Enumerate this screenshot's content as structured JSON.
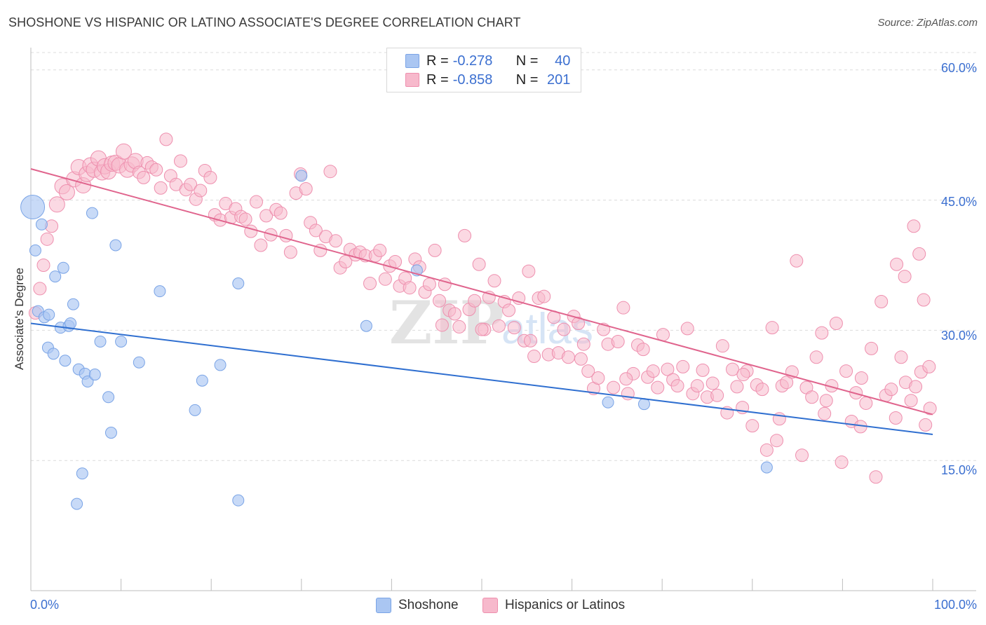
{
  "title": "SHOSHONE VS HISPANIC OR LATINO ASSOCIATE'S DEGREE CORRELATION CHART",
  "source": "Source: ZipAtlas.com",
  "legend": {
    "rows": [
      {
        "r_label": "R =",
        "r_value": "-0.278",
        "n_label": "N =",
        "n_value": "40"
      },
      {
        "r_label": "R =",
        "r_value": "-0.858",
        "n_label": "N =",
        "n_value": "201"
      }
    ],
    "bottom": [
      "Shoshone",
      "Hispanics or Latinos"
    ]
  },
  "colors": {
    "shoshone_fill": "#aac6f2",
    "shoshone_stroke": "#7aa4e6",
    "shoshone_line": "#2f6fd0",
    "hispanic_fill": "#f7b9cc",
    "hispanic_stroke": "#ee8fae",
    "hispanic_line": "#e0648d",
    "axis_text": "#3b6fd0"
  },
  "chart_data": {
    "type": "scatter",
    "title": "SHOSHONE VS HISPANIC OR LATINO ASSOCIATE'S DEGREE CORRELATION CHART",
    "xlabel": "",
    "ylabel": "Associate's Degree",
    "xlim": [
      0,
      100
    ],
    "ylim": [
      0,
      62
    ],
    "x_tick_labels": [
      "0.0%",
      "100.0%"
    ],
    "y_ticks": [
      15,
      30,
      45,
      60
    ],
    "y_tick_labels": [
      "15.0%",
      "30.0%",
      "45.0%",
      "60.0%"
    ],
    "grid": true,
    "watermark": "ZIPatlas",
    "series": [
      {
        "name": "Shoshone",
        "r": -0.278,
        "n": 40,
        "trend": [
          [
            0,
            30.8
          ],
          [
            100,
            18.0
          ]
        ],
        "points": [
          [
            0.2,
            44.2
          ],
          [
            0.5,
            39.2
          ],
          [
            0.8,
            32.2
          ],
          [
            1.2,
            42.2
          ],
          [
            1.5,
            31.5
          ],
          [
            2.0,
            31.8
          ],
          [
            1.9,
            28.0
          ],
          [
            2.5,
            27.3
          ],
          [
            2.7,
            36.2
          ],
          [
            3.3,
            30.3
          ],
          [
            3.6,
            37.2
          ],
          [
            3.8,
            26.5
          ],
          [
            4.2,
            30.5
          ],
          [
            4.4,
            30.8
          ],
          [
            4.7,
            33.0
          ],
          [
            5.1,
            10.0
          ],
          [
            5.3,
            25.5
          ],
          [
            5.7,
            13.5
          ],
          [
            6.0,
            25.0
          ],
          [
            6.3,
            24.1
          ],
          [
            7.1,
            24.9
          ],
          [
            6.8,
            43.5
          ],
          [
            7.7,
            28.7
          ],
          [
            8.6,
            22.3
          ],
          [
            8.9,
            18.2
          ],
          [
            9.4,
            39.8
          ],
          [
            10.0,
            28.7
          ],
          [
            12.0,
            26.3
          ],
          [
            14.3,
            34.5
          ],
          [
            18.2,
            20.8
          ],
          [
            19.0,
            24.2
          ],
          [
            21.0,
            26.0
          ],
          [
            23.0,
            10.4
          ],
          [
            23.0,
            35.4
          ],
          [
            30.0,
            47.8
          ],
          [
            37.2,
            30.5
          ],
          [
            42.8,
            36.9
          ],
          [
            64.0,
            21.7
          ],
          [
            68.0,
            21.5
          ],
          [
            81.6,
            14.2
          ]
        ]
      },
      {
        "name": "Hispanics or Latinos",
        "r": -0.858,
        "n": 201,
        "trend": [
          [
            0,
            48.6
          ],
          [
            100,
            20.3
          ]
        ],
        "points": [
          [
            0.5,
            32.0
          ],
          [
            1.0,
            34.8
          ],
          [
            1.4,
            37.5
          ],
          [
            1.8,
            40.5
          ],
          [
            2.3,
            42.0
          ],
          [
            2.9,
            44.5
          ],
          [
            3.5,
            46.6
          ],
          [
            4.0,
            45.9
          ],
          [
            4.8,
            47.4
          ],
          [
            5.3,
            48.8
          ],
          [
            5.8,
            46.7
          ],
          [
            6.2,
            48.0
          ],
          [
            6.6,
            49.0
          ],
          [
            7.0,
            48.5
          ],
          [
            7.5,
            49.8
          ],
          [
            7.9,
            48.2
          ],
          [
            8.2,
            48.9
          ],
          [
            8.6,
            48.3
          ],
          [
            9.0,
            49.2
          ],
          [
            9.4,
            49.3
          ],
          [
            9.8,
            49.0
          ],
          [
            10.3,
            50.6
          ],
          [
            10.7,
            48.5
          ],
          [
            11.2,
            49.1
          ],
          [
            11.6,
            49.5
          ],
          [
            12.0,
            48.2
          ],
          [
            12.5,
            47.6
          ],
          [
            12.9,
            49.3
          ],
          [
            13.4,
            48.8
          ],
          [
            13.9,
            48.5
          ],
          [
            14.4,
            46.4
          ],
          [
            15.0,
            52.0
          ],
          [
            15.5,
            47.8
          ],
          [
            16.1,
            46.8
          ],
          [
            16.6,
            49.5
          ],
          [
            17.2,
            46.2
          ],
          [
            17.7,
            46.8
          ],
          [
            18.3,
            45.1
          ],
          [
            18.8,
            46.1
          ],
          [
            19.3,
            48.4
          ],
          [
            19.9,
            47.6
          ],
          [
            20.4,
            43.3
          ],
          [
            21.0,
            42.7
          ],
          [
            21.6,
            44.6
          ],
          [
            22.2,
            43.0
          ],
          [
            22.7,
            44.0
          ],
          [
            23.3,
            43.1
          ],
          [
            23.8,
            42.8
          ],
          [
            24.4,
            41.4
          ],
          [
            25.0,
            44.8
          ],
          [
            25.5,
            39.8
          ],
          [
            26.1,
            43.2
          ],
          [
            26.6,
            41.0
          ],
          [
            27.2,
            43.9
          ],
          [
            27.7,
            43.5
          ],
          [
            28.3,
            40.9
          ],
          [
            28.8,
            39.0
          ],
          [
            29.4,
            45.8
          ],
          [
            29.9,
            48.0
          ],
          [
            30.5,
            46.3
          ],
          [
            31.0,
            42.4
          ],
          [
            31.6,
            41.5
          ],
          [
            32.1,
            39.2
          ],
          [
            32.7,
            40.8
          ],
          [
            33.2,
            48.3
          ],
          [
            33.8,
            40.3
          ],
          [
            34.3,
            37.2
          ],
          [
            34.9,
            37.9
          ],
          [
            35.4,
            39.3
          ],
          [
            36.0,
            38.7
          ],
          [
            36.5,
            39.0
          ],
          [
            37.1,
            38.6
          ],
          [
            37.6,
            35.4
          ],
          [
            38.2,
            38.6
          ],
          [
            38.7,
            39.2
          ],
          [
            39.3,
            35.9
          ],
          [
            39.8,
            37.4
          ],
          [
            40.4,
            37.9
          ],
          [
            40.9,
            35.1
          ],
          [
            41.5,
            36.0
          ],
          [
            42.0,
            34.9
          ],
          [
            42.6,
            38.2
          ],
          [
            43.1,
            37.3
          ],
          [
            43.7,
            34.4
          ],
          [
            44.2,
            35.3
          ],
          [
            44.8,
            39.2
          ],
          [
            45.3,
            33.4
          ],
          [
            45.9,
            35.3
          ],
          [
            46.4,
            32.3
          ],
          [
            47.0,
            31.9
          ],
          [
            47.5,
            30.4
          ],
          [
            48.1,
            40.9
          ],
          [
            48.6,
            32.4
          ],
          [
            49.2,
            33.4
          ],
          [
            49.7,
            37.6
          ],
          [
            50.3,
            30.1
          ],
          [
            50.8,
            33.8
          ],
          [
            51.4,
            35.7
          ],
          [
            51.9,
            30.5
          ],
          [
            52.5,
            33.3
          ],
          [
            53.0,
            32.3
          ],
          [
            53.6,
            30.3
          ],
          [
            54.1,
            33.7
          ],
          [
            54.7,
            28.8
          ],
          [
            55.2,
            36.8
          ],
          [
            55.8,
            27.0
          ],
          [
            56.3,
            33.7
          ],
          [
            56.9,
            33.9
          ],
          [
            57.4,
            27.2
          ],
          [
            58.0,
            31.5
          ],
          [
            58.5,
            27.4
          ],
          [
            59.1,
            30.1
          ],
          [
            59.6,
            26.9
          ],
          [
            60.2,
            31.6
          ],
          [
            60.7,
            30.8
          ],
          [
            61.3,
            28.4
          ],
          [
            61.8,
            25.3
          ],
          [
            62.4,
            23.3
          ],
          [
            62.9,
            24.5
          ],
          [
            63.5,
            30.1
          ],
          [
            64.0,
            28.4
          ],
          [
            64.6,
            23.4
          ],
          [
            65.1,
            28.7
          ],
          [
            65.7,
            32.6
          ],
          [
            66.2,
            22.7
          ],
          [
            66.8,
            25.0
          ],
          [
            67.3,
            28.3
          ],
          [
            67.9,
            27.8
          ],
          [
            68.4,
            24.6
          ],
          [
            69.0,
            25.3
          ],
          [
            69.5,
            23.4
          ],
          [
            70.1,
            29.5
          ],
          [
            70.6,
            25.5
          ],
          [
            71.2,
            24.3
          ],
          [
            71.7,
            23.6
          ],
          [
            72.3,
            25.8
          ],
          [
            72.8,
            30.2
          ],
          [
            73.4,
            22.7
          ],
          [
            73.9,
            23.6
          ],
          [
            74.5,
            25.4
          ],
          [
            75.0,
            22.3
          ],
          [
            75.6,
            23.9
          ],
          [
            76.1,
            22.5
          ],
          [
            76.7,
            28.2
          ],
          [
            77.2,
            20.5
          ],
          [
            77.8,
            25.5
          ],
          [
            78.3,
            23.5
          ],
          [
            78.9,
            21.1
          ],
          [
            79.4,
            25.3
          ],
          [
            80.0,
            19.0
          ],
          [
            80.5,
            23.7
          ],
          [
            81.1,
            23.2
          ],
          [
            81.6,
            16.2
          ],
          [
            82.2,
            30.3
          ],
          [
            82.7,
            17.3
          ],
          [
            83.3,
            23.6
          ],
          [
            83.8,
            24.0
          ],
          [
            84.4,
            25.2
          ],
          [
            84.9,
            38.0
          ],
          [
            85.5,
            15.6
          ],
          [
            86.0,
            23.4
          ],
          [
            86.6,
            22.3
          ],
          [
            87.1,
            26.9
          ],
          [
            87.7,
            29.7
          ],
          [
            88.2,
            21.9
          ],
          [
            88.8,
            23.6
          ],
          [
            89.3,
            30.8
          ],
          [
            89.9,
            14.8
          ],
          [
            90.4,
            25.3
          ],
          [
            91.0,
            19.5
          ],
          [
            91.5,
            22.8
          ],
          [
            92.1,
            24.5
          ],
          [
            92.6,
            21.6
          ],
          [
            93.2,
            27.9
          ],
          [
            93.7,
            13.1
          ],
          [
            94.3,
            33.3
          ],
          [
            94.8,
            22.5
          ],
          [
            95.4,
            23.2
          ],
          [
            95.9,
            19.9
          ],
          [
            96.5,
            26.9
          ],
          [
            97.0,
            24.0
          ],
          [
            97.6,
            21.9
          ],
          [
            98.1,
            23.5
          ],
          [
            98.7,
            25.2
          ],
          [
            99.2,
            19.1
          ],
          [
            99.7,
            21.0
          ],
          [
            96.0,
            37.6
          ],
          [
            96.9,
            36.2
          ],
          [
            97.9,
            42.0
          ],
          [
            98.5,
            38.8
          ],
          [
            99.0,
            33.5
          ],
          [
            99.6,
            25.8
          ],
          [
            50.0,
            30.1
          ],
          [
            45.6,
            30.6
          ],
          [
            55.4,
            28.8
          ],
          [
            61.0,
            26.7
          ],
          [
            66.0,
            24.4
          ],
          [
            83.0,
            19.8
          ],
          [
            88.0,
            20.4
          ],
          [
            92.0,
            18.9
          ],
          [
            79.0,
            24.9
          ]
        ]
      }
    ]
  }
}
